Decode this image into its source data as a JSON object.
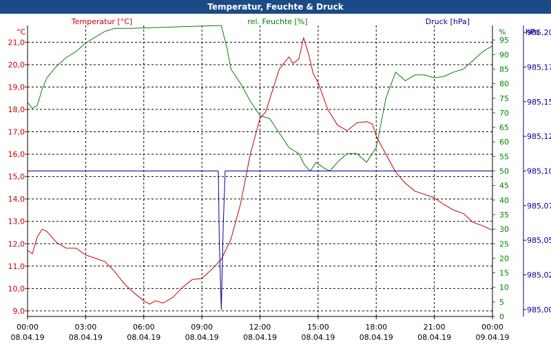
{
  "window": {
    "title": "Temperatur, Feuchte & Druck"
  },
  "colors": {
    "temperature": "#c00000",
    "humidity": "#008000",
    "pressure": "#000090",
    "titlebar": "#1b4a86",
    "grid": "#000000"
  },
  "chart_data": {
    "type": "line",
    "title": "Temperatur, Feuchte & Druck",
    "grid": true,
    "x_range": [
      "08.04.19 00:00",
      "09.04.19 00:00"
    ],
    "x_ticks": [
      {
        "time": "00:00",
        "date": "08.04.19",
        "h": 0
      },
      {
        "time": "03:00",
        "date": "08.04.19",
        "h": 3
      },
      {
        "time": "06:00",
        "date": "08.04.19",
        "h": 6
      },
      {
        "time": "09:00",
        "date": "08.04.19",
        "h": 9
      },
      {
        "time": "12:00",
        "date": "08.04.19",
        "h": 12
      },
      {
        "time": "15:00",
        "date": "08.04.19",
        "h": 15
      },
      {
        "time": "18:00",
        "date": "08.04.19",
        "h": 18
      },
      {
        "time": "21:00",
        "date": "08.04.19",
        "h": 21
      },
      {
        "time": "00:00",
        "date": "09.04.19",
        "h": 24
      }
    ],
    "axes": {
      "left": {
        "unit": "°C",
        "ylim": [
          8.75,
          21.75
        ],
        "ticks": [
          9,
          10,
          11,
          12,
          13,
          14,
          15,
          16,
          17,
          18,
          19,
          20,
          21
        ],
        "tick_labels": [
          "9,0",
          "10,0",
          "11,0",
          "12,0",
          "13,0",
          "14,0",
          "15,0",
          "16,0",
          "17,0",
          "18,0",
          "19,0",
          "20,0",
          "21,0"
        ]
      },
      "right": {
        "unit": "%",
        "ylim": [
          0,
          100
        ],
        "ticks": [
          0,
          5,
          10,
          15,
          20,
          25,
          30,
          35,
          40,
          45,
          50,
          55,
          60,
          65,
          70,
          75,
          80,
          85,
          90,
          95
        ]
      },
      "far_right": {
        "unit": "hPa",
        "ylim": [
          984.995,
          985.205
        ],
        "ticks": [
          985.0,
          985.025,
          985.05,
          985.075,
          985.1,
          985.125,
          985.15,
          985.175,
          985.2
        ],
        "tick_labels": [
          "985,00",
          "985,02",
          "985,05",
          "985,07",
          "985,10",
          "985,12",
          "985,15",
          "985,17",
          "985,20"
        ]
      }
    },
    "series": [
      {
        "name": "Temperatur [°C]",
        "axis": "left",
        "color": "#c00000",
        "points": [
          [
            0,
            11.7
          ],
          [
            0.25,
            11.55
          ],
          [
            0.5,
            12.3
          ],
          [
            0.75,
            12.65
          ],
          [
            1.0,
            12.55
          ],
          [
            1.5,
            12.05
          ],
          [
            2.0,
            11.8
          ],
          [
            2.5,
            11.8
          ],
          [
            3.0,
            11.5
          ],
          [
            3.5,
            11.35
          ],
          [
            4.0,
            11.2
          ],
          [
            4.5,
            10.75
          ],
          [
            5.0,
            10.2
          ],
          [
            5.5,
            9.8
          ],
          [
            6.0,
            9.45
          ],
          [
            6.3,
            9.3
          ],
          [
            6.6,
            9.45
          ],
          [
            7.0,
            9.35
          ],
          [
            7.5,
            9.6
          ],
          [
            8.0,
            10.05
          ],
          [
            8.5,
            10.4
          ],
          [
            9.0,
            10.45
          ],
          [
            9.5,
            10.85
          ],
          [
            10.0,
            11.3
          ],
          [
            10.5,
            12.2
          ],
          [
            11.0,
            13.8
          ],
          [
            11.5,
            16.0
          ],
          [
            12.0,
            17.6
          ],
          [
            12.3,
            17.9
          ],
          [
            12.7,
            19.0
          ],
          [
            13.0,
            19.8
          ],
          [
            13.5,
            20.35
          ],
          [
            13.7,
            20.05
          ],
          [
            14.0,
            20.25
          ],
          [
            14.25,
            21.2
          ],
          [
            14.5,
            20.5
          ],
          [
            14.75,
            19.6
          ],
          [
            15.0,
            19.2
          ],
          [
            15.5,
            18.0
          ],
          [
            16.0,
            17.3
          ],
          [
            16.5,
            17.05
          ],
          [
            17.0,
            17.4
          ],
          [
            17.5,
            17.45
          ],
          [
            17.8,
            17.35
          ],
          [
            18.0,
            16.8
          ],
          [
            18.5,
            16.0
          ],
          [
            19.0,
            15.2
          ],
          [
            19.5,
            14.7
          ],
          [
            20.0,
            14.35
          ],
          [
            21.0,
            14.05
          ],
          [
            21.5,
            13.75
          ],
          [
            22.0,
            13.5
          ],
          [
            22.5,
            13.35
          ],
          [
            23.0,
            12.95
          ],
          [
            23.5,
            12.8
          ],
          [
            24.0,
            12.6
          ]
        ]
      },
      {
        "name": "rel. Feuchte [%]",
        "axis": "right",
        "color": "#008000",
        "points": [
          [
            0,
            73.5
          ],
          [
            0.25,
            71.5
          ],
          [
            0.5,
            72.5
          ],
          [
            0.75,
            78
          ],
          [
            1.0,
            82
          ],
          [
            1.5,
            86
          ],
          [
            2.0,
            89
          ],
          [
            2.5,
            91
          ],
          [
            3.0,
            94
          ],
          [
            3.5,
            96
          ],
          [
            4.0,
            98
          ],
          [
            4.5,
            99
          ],
          [
            5.0,
            99
          ],
          [
            5.3,
            99
          ],
          [
            10.0,
            100
          ],
          [
            10.3,
            92
          ],
          [
            10.5,
            85
          ],
          [
            11.0,
            80
          ],
          [
            11.5,
            74
          ],
          [
            12.0,
            69
          ],
          [
            12.5,
            68
          ],
          [
            13.0,
            63
          ],
          [
            13.5,
            58
          ],
          [
            14.0,
            56
          ],
          [
            14.3,
            52
          ],
          [
            14.6,
            50
          ],
          [
            14.9,
            53
          ],
          [
            15.3,
            51
          ],
          [
            15.6,
            50
          ],
          [
            16.0,
            53
          ],
          [
            16.5,
            56
          ],
          [
            17.0,
            56
          ],
          [
            17.5,
            53
          ],
          [
            18.0,
            58
          ],
          [
            18.5,
            75
          ],
          [
            19.0,
            84
          ],
          [
            19.5,
            81
          ],
          [
            20.0,
            83
          ],
          [
            20.5,
            83
          ],
          [
            21.0,
            82
          ],
          [
            21.5,
            82.5
          ],
          [
            22.0,
            84
          ],
          [
            22.5,
            85
          ],
          [
            23.0,
            88
          ],
          [
            23.5,
            91
          ],
          [
            24.0,
            93
          ]
        ]
      },
      {
        "name": "Druck [hPa]",
        "axis": "far_right",
        "color": "#000090",
        "points": [
          [
            0,
            985.1
          ],
          [
            9.85,
            985.1
          ],
          [
            9.9,
            985.05
          ],
          [
            10.0,
            985.0
          ],
          [
            10.1,
            985.06
          ],
          [
            10.2,
            985.1
          ],
          [
            24.0,
            985.1
          ]
        ]
      }
    ]
  }
}
